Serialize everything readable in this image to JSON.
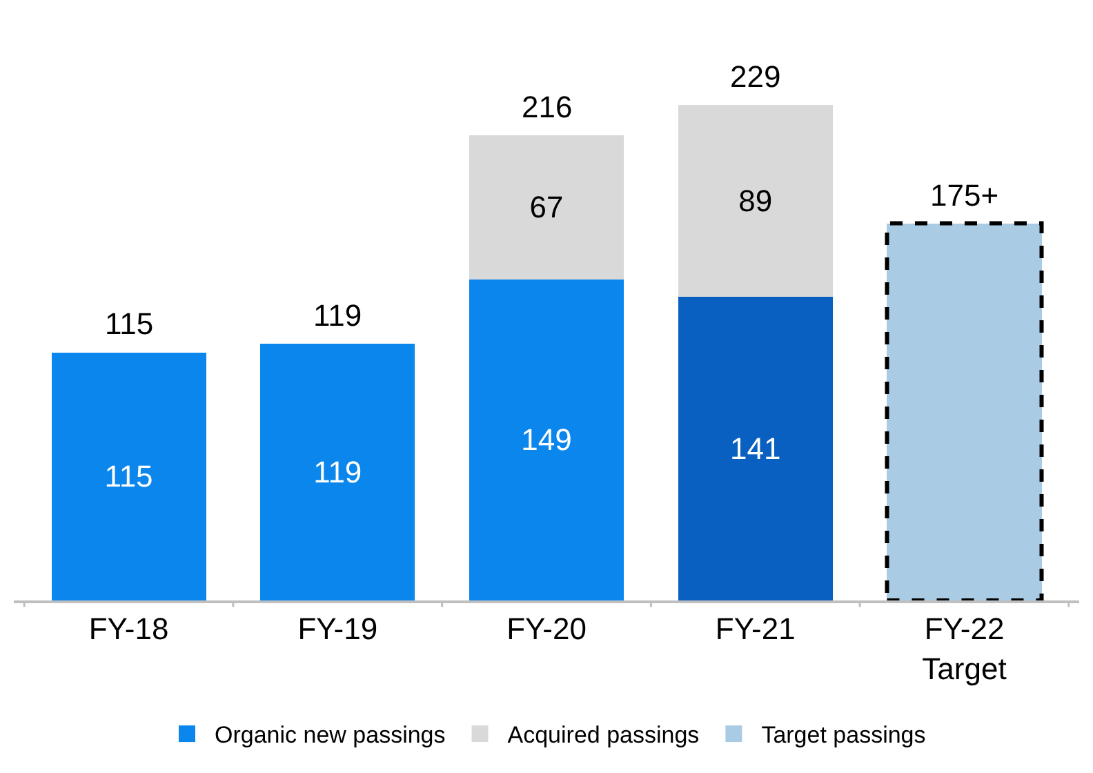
{
  "chart_data": {
    "type": "bar",
    "stacked": true,
    "categories": [
      "FY-18",
      "FY-19",
      "FY-20",
      "FY-21",
      "FY-22\nTarget"
    ],
    "series": [
      {
        "name": "Organic new passings",
        "color": "#0a78e0",
        "colors": [
          "#0a86ec",
          "#0a86ec",
          "#0a86ec",
          "#0a60c0",
          null
        ],
        "values": [
          115,
          119,
          149,
          141,
          null
        ],
        "value_labels": [
          "115",
          "119",
          "149",
          "141",
          null
        ]
      },
      {
        "name": "Acquired passings",
        "color": "#d9d9d9",
        "values": [
          null,
          null,
          67,
          89,
          null
        ],
        "value_labels": [
          null,
          null,
          "67",
          "89",
          null
        ]
      },
      {
        "name": "Target passings",
        "color": "#a9cbe3",
        "values": [
          null,
          null,
          null,
          null,
          175
        ],
        "line_style": "dashed"
      }
    ],
    "totals": [
      "115",
      "119",
      "216",
      "229",
      "175+"
    ],
    "legend": "bottom"
  }
}
